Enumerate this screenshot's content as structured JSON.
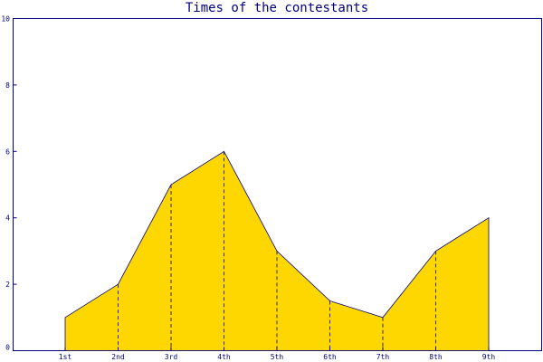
{
  "chart_data": {
    "type": "area",
    "title": "Times of the contestants",
    "categories": [
      "1st",
      "2nd",
      "3rd",
      "4th",
      "5th",
      "6th",
      "7th",
      "8th",
      "9th"
    ],
    "values": [
      1,
      2,
      5,
      6,
      3,
      1.5,
      1,
      3,
      4
    ],
    "ylim": [
      0,
      10
    ],
    "yticks": [
      0,
      2,
      4,
      6,
      8,
      10
    ],
    "grid": false,
    "colors": {
      "fill": "#ffd700",
      "outline": "#000080",
      "axis": "#000080",
      "drop_lines": "#000080"
    }
  }
}
